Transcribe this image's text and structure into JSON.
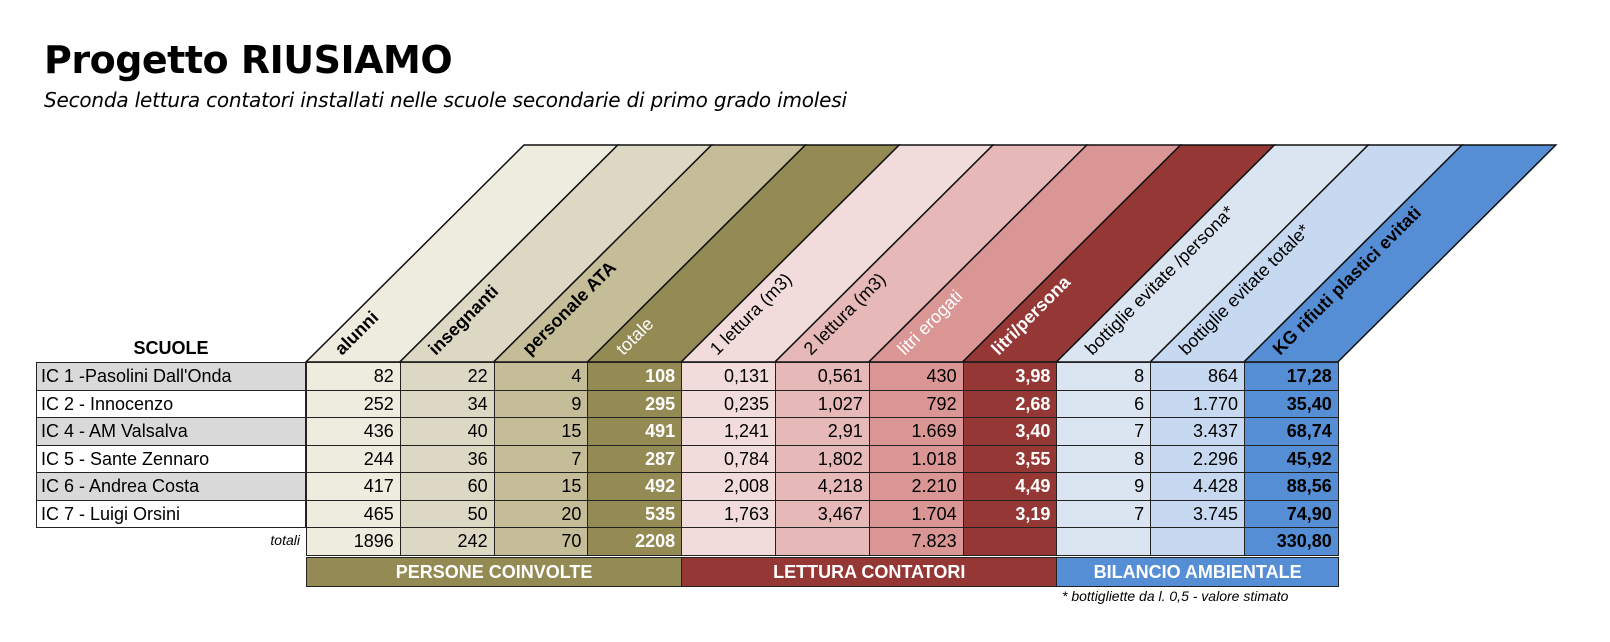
{
  "title": "Progetto RIUSIAMO",
  "subtitle": "Seconda lettura contatori installati nelle scuole secondarie di primo grado imolesi",
  "table": {
    "row_header": "SCUOLE",
    "columns": [
      {
        "label": "alunni",
        "color": "#eeebdf",
        "bold": true,
        "text_color": "#000000"
      },
      {
        "label": "insegnanti",
        "color": "#ddd8c4",
        "bold": true,
        "text_color": "#000000"
      },
      {
        "label": "personale ATA",
        "color": "#c4bd97",
        "bold": true,
        "text_color": "#000000"
      },
      {
        "label": "totale",
        "color": "#948a54",
        "bold": false,
        "text_color": "#ffffff"
      },
      {
        "label": "1 lettura (m3)",
        "color": "#f2dcdb",
        "bold": false,
        "text_color": "#000000"
      },
      {
        "label": "2 lettura (m3)",
        "color": "#e6b9b8",
        "bold": false,
        "text_color": "#000000"
      },
      {
        "label": "litri erogati",
        "color": "#d99694",
        "bold": false,
        "text_color": "#ffffff"
      },
      {
        "label": "litri/persona",
        "color": "#953735",
        "bold": true,
        "text_color": "#ffffff"
      },
      {
        "label": "bottiglie evitate /persona*",
        "color": "#dbe5f1",
        "bold": false,
        "text_color": "#000000"
      },
      {
        "label": "bottiglie evitate totale*",
        "color": "#c6d9f1",
        "bold": false,
        "text_color": "#000000"
      },
      {
        "label": "KG rifiuti plastici evitati",
        "color": "#558ed5",
        "bold": true,
        "text_color": "#000000"
      }
    ],
    "rows": [
      {
        "school": "IC 1  -Pasolini Dall'Onda",
        "values": [
          "82",
          "22",
          "4",
          "108",
          "0,131",
          "0,561",
          "430",
          "3,98",
          "8",
          "864",
          "17,28"
        ]
      },
      {
        "school": "IC 2 - Innocenzo",
        "values": [
          "252",
          "34",
          "9",
          "295",
          "0,235",
          "1,027",
          "792",
          "2,68",
          "6",
          "1.770",
          "35,40"
        ]
      },
      {
        "school": "IC 4 - AM Valsalva",
        "values": [
          "436",
          "40",
          "15",
          "491",
          "1,241",
          "2,91",
          "1.669",
          "3,40",
          "7",
          "3.437",
          "68,74"
        ]
      },
      {
        "school": "IC 5 - Sante Zennaro",
        "values": [
          "244",
          "36",
          "7",
          "287",
          "0,784",
          "1,802",
          "1.018",
          "3,55",
          "8",
          "2.296",
          "45,92"
        ]
      },
      {
        "school": "IC 6 - Andrea Costa",
        "values": [
          "417",
          "60",
          "15",
          "492",
          "2,008",
          "4,218",
          "2.210",
          "4,49",
          "9",
          "4.428",
          "88,56"
        ]
      },
      {
        "school": "IC 7 - Luigi Orsini",
        "values": [
          "465",
          "50",
          "20",
          "535",
          "1,763",
          "3,467",
          "1.704",
          "3,19",
          "7",
          "3.745",
          "74,90"
        ]
      }
    ],
    "totals": {
      "label": "totali",
      "values": [
        "1896",
        "242",
        "70",
        "2208",
        "",
        "",
        "7.823",
        "",
        "",
        "",
        "330,80"
      ]
    },
    "groups": [
      {
        "label": "PERSONE COINVOLTE",
        "color": "#948a54",
        "start": 0,
        "span": 4
      },
      {
        "label": "LETTURA CONTATORI",
        "color": "#953735",
        "start": 4,
        "span": 4
      },
      {
        "label": "BILANCIO AMBIENTALE",
        "color": "#558ed5",
        "start": 8,
        "span": 3
      }
    ]
  },
  "note": "* bottigliette da l. 0,5 - valore stimato"
}
